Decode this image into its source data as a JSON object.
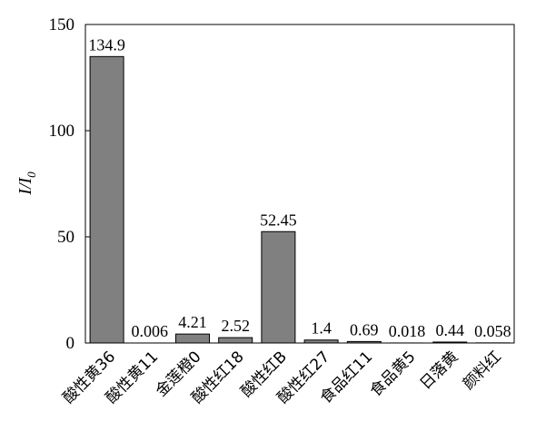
{
  "chart_data": {
    "type": "bar",
    "title": "",
    "xlabel": "",
    "ylabel": "I/I0",
    "ylabel_parts": {
      "main": "I/I",
      "sub": "0"
    },
    "ylim": [
      0,
      150
    ],
    "yticks": [
      0,
      50,
      100,
      150
    ],
    "grid": false,
    "legend": "none",
    "bar_color": "#808080",
    "categories": [
      "酸性黄36",
      "酸性黄11",
      "金莲橙0",
      "酸性红18",
      "酸性红B",
      "酸性红27",
      "食品红11",
      "食品黄5",
      "日落黄",
      "颜料红"
    ],
    "values": [
      134.9,
      0.006,
      4.21,
      2.52,
      52.45,
      1.4,
      0.69,
      0.018,
      0.44,
      0.058
    ],
    "value_labels": [
      "134.9",
      "0.006",
      "4.21",
      "2.52",
      "52.45",
      "1.4",
      "0.69",
      "0.018",
      "0.44",
      "0.058"
    ]
  }
}
